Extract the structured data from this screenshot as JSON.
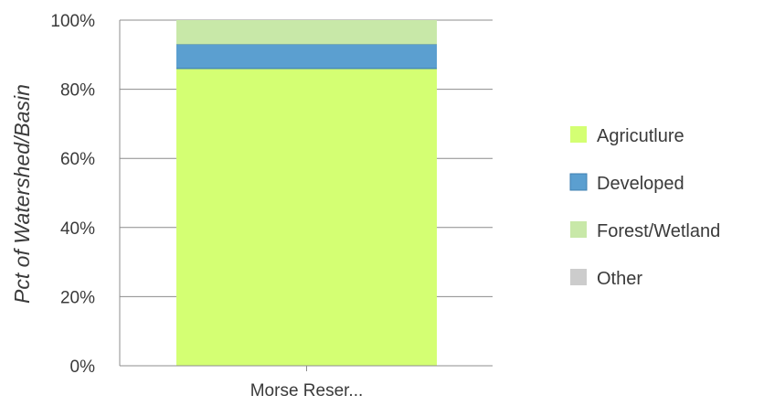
{
  "chart_data": {
    "type": "bar",
    "stacked": true,
    "orientation": "vertical",
    "categories": [
      "Morse Reser..."
    ],
    "ylabel": "Pct of Watershed/Basin",
    "xlabel": "",
    "ylim": [
      0,
      100
    ],
    "y_ticks": [
      "0%",
      "20%",
      "40%",
      "60%",
      "80%",
      "100%"
    ],
    "y_tick_values": [
      0,
      20,
      40,
      60,
      80,
      100
    ],
    "grid": true,
    "legend_position": "right",
    "series": [
      {
        "name": "Agricutlure",
        "values": [
          86
        ],
        "color": "#d4ff73"
      },
      {
        "name": "Developed",
        "values": [
          7
        ],
        "color": "#5b9fd0"
      },
      {
        "name": "Forest/Wetland",
        "values": [
          7
        ],
        "color": "#c8e8a8"
      },
      {
        "name": "Other",
        "values": [
          0
        ],
        "color": "#cccccc"
      }
    ]
  }
}
